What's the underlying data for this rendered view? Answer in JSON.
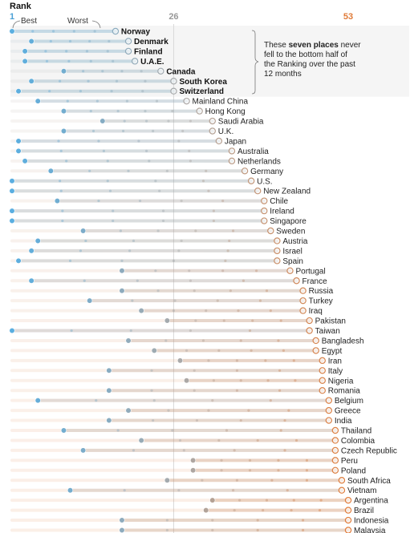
{
  "header": {
    "title": "Rank",
    "best_label": "Best",
    "worst_label": "Worst",
    "tick_min": "1",
    "tick_mid": "26",
    "tick_max": "53"
  },
  "annotation": {
    "lines": [
      [
        {
          "text": "These ",
          "bold": false
        },
        {
          "text": "seven places",
          "bold": true
        },
        {
          "text": " never",
          "bold": false
        }
      ],
      [
        {
          "text": "fell to the bottom half of",
          "bold": false
        }
      ],
      [
        {
          "text": "the Ranking over the past",
          "bold": false
        }
      ],
      [
        {
          "text": "12 months",
          "bold": false
        }
      ]
    ]
  },
  "colors": {
    "best_color": "#5aaee0",
    "worst_color": "#e07b39",
    "mid_color": "#aaaaaa",
    "best_tick_color": "#4ba1d6",
    "mid_tick_color": "#999999",
    "worst_tick_color": "#e07b39",
    "highlight_box": "#f5f5f5"
  },
  "chart_data": {
    "type": "dot-range",
    "x_axis": {
      "range": [
        1,
        53
      ],
      "ticks": [
        1,
        26,
        53
      ],
      "reversed": false
    },
    "rows": [
      {
        "name": "Norway",
        "best": 1,
        "worst": 17,
        "highlighted": true
      },
      {
        "name": "Denmark",
        "best": 4,
        "worst": 19,
        "highlighted": true
      },
      {
        "name": "Finland",
        "best": 3,
        "worst": 19,
        "highlighted": true
      },
      {
        "name": "U.A.E.",
        "best": 3,
        "worst": 20,
        "highlighted": true
      },
      {
        "name": "Canada",
        "best": 9,
        "worst": 24,
        "highlighted": true
      },
      {
        "name": "South Korea",
        "best": 4,
        "worst": 26,
        "highlighted": true
      },
      {
        "name": "Switzerland",
        "best": 2,
        "worst": 26,
        "highlighted": true
      },
      {
        "name": "Mainland China",
        "best": 5,
        "worst": 28,
        "highlighted": false
      },
      {
        "name": "Hong Kong",
        "best": 9,
        "worst": 30,
        "highlighted": false
      },
      {
        "name": "Saudi Arabia",
        "best": 15,
        "worst": 32,
        "highlighted": false
      },
      {
        "name": "U.K.",
        "best": 9,
        "worst": 32,
        "highlighted": false
      },
      {
        "name": "Japan",
        "best": 2,
        "worst": 33,
        "highlighted": false
      },
      {
        "name": "Australia",
        "best": 2,
        "worst": 35,
        "highlighted": false
      },
      {
        "name": "Netherlands",
        "best": 3,
        "worst": 35,
        "highlighted": false
      },
      {
        "name": "Germany",
        "best": 7,
        "worst": 37,
        "highlighted": false
      },
      {
        "name": "U.S.",
        "best": 1,
        "worst": 38,
        "highlighted": false
      },
      {
        "name": "New Zealand",
        "best": 1,
        "worst": 39,
        "highlighted": false
      },
      {
        "name": "Chile",
        "best": 8,
        "worst": 40,
        "highlighted": false
      },
      {
        "name": "Ireland",
        "best": 1,
        "worst": 40,
        "highlighted": false
      },
      {
        "name": "Singapore",
        "best": 1,
        "worst": 40,
        "highlighted": false
      },
      {
        "name": "Sweden",
        "best": 12,
        "worst": 41,
        "highlighted": false
      },
      {
        "name": "Austria",
        "best": 5,
        "worst": 42,
        "highlighted": false
      },
      {
        "name": "Israel",
        "best": 4,
        "worst": 42,
        "highlighted": false
      },
      {
        "name": "Spain",
        "best": 2,
        "worst": 42,
        "highlighted": false
      },
      {
        "name": "Portugal",
        "best": 18,
        "worst": 44,
        "highlighted": false
      },
      {
        "name": "France",
        "best": 4,
        "worst": 45,
        "highlighted": false
      },
      {
        "name": "Russia",
        "best": 18,
        "worst": 46,
        "highlighted": false
      },
      {
        "name": "Turkey",
        "best": 13,
        "worst": 46,
        "highlighted": false
      },
      {
        "name": "Iraq",
        "best": 21,
        "worst": 46,
        "highlighted": false
      },
      {
        "name": "Pakistan",
        "best": 25,
        "worst": 47,
        "highlighted": false
      },
      {
        "name": "Taiwan",
        "best": 1,
        "worst": 47,
        "highlighted": false
      },
      {
        "name": "Bangladesh",
        "best": 19,
        "worst": 48,
        "highlighted": false
      },
      {
        "name": "Egypt",
        "best": 23,
        "worst": 48,
        "highlighted": false
      },
      {
        "name": "Iran",
        "best": 27,
        "worst": 49,
        "highlighted": false
      },
      {
        "name": "Italy",
        "best": 16,
        "worst": 49,
        "highlighted": false
      },
      {
        "name": "Nigeria",
        "best": 28,
        "worst": 49,
        "highlighted": false
      },
      {
        "name": "Romania",
        "best": 16,
        "worst": 49,
        "highlighted": false
      },
      {
        "name": "Belgium",
        "best": 5,
        "worst": 50,
        "highlighted": false
      },
      {
        "name": "Greece",
        "best": 19,
        "worst": 50,
        "highlighted": false
      },
      {
        "name": "India",
        "best": 16,
        "worst": 50,
        "highlighted": false
      },
      {
        "name": "Thailand",
        "best": 9,
        "worst": 51,
        "highlighted": false
      },
      {
        "name": "Colombia",
        "best": 21,
        "worst": 51,
        "highlighted": false
      },
      {
        "name": "Czech Republic",
        "best": 12,
        "worst": 51,
        "highlighted": false
      },
      {
        "name": "Peru",
        "best": 29,
        "worst": 51,
        "highlighted": false
      },
      {
        "name": "Poland",
        "best": 29,
        "worst": 51,
        "highlighted": false
      },
      {
        "name": "South Africa",
        "best": 25,
        "worst": 52,
        "highlighted": false
      },
      {
        "name": "Vietnam",
        "best": 10,
        "worst": 52,
        "highlighted": false
      },
      {
        "name": "Argentina",
        "best": 32,
        "worst": 53,
        "highlighted": false
      },
      {
        "name": "Brazil",
        "best": 31,
        "worst": 53,
        "highlighted": false
      },
      {
        "name": "Indonesia",
        "best": 18,
        "worst": 53,
        "highlighted": false
      },
      {
        "name": "Malaysia",
        "best": 18,
        "worst": 53,
        "highlighted": false
      }
    ]
  }
}
